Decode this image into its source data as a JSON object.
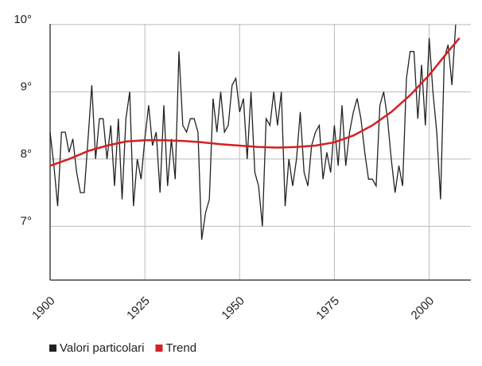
{
  "chart_data": {
    "type": "line",
    "xlim": [
      1900,
      2011
    ],
    "ylim": [
      6.2,
      10.2
    ],
    "xticks": [
      1900,
      1925,
      1950,
      1975,
      2000
    ],
    "yticks": [
      {
        "value": 7,
        "label": "7°"
      },
      {
        "value": 8,
        "label": "8°"
      },
      {
        "value": 9,
        "label": "9°"
      },
      {
        "value": 10,
        "label": "10°"
      }
    ],
    "grid": true,
    "legend": "bottom",
    "series": [
      {
        "name": "Valori particolari",
        "color": "#222222",
        "x": [
          1900,
          1901,
          1902,
          1903,
          1904,
          1905,
          1906,
          1907,
          1908,
          1909,
          1910,
          1911,
          1912,
          1913,
          1914,
          1915,
          1916,
          1917,
          1918,
          1919,
          1920,
          1921,
          1922,
          1923,
          1924,
          1925,
          1926,
          1927,
          1928,
          1929,
          1930,
          1931,
          1932,
          1933,
          1934,
          1935,
          1936,
          1937,
          1938,
          1939,
          1940,
          1941,
          1942,
          1943,
          1944,
          1945,
          1946,
          1947,
          1948,
          1949,
          1950,
          1951,
          1952,
          1953,
          1954,
          1955,
          1956,
          1957,
          1958,
          1959,
          1960,
          1961,
          1962,
          1963,
          1964,
          1965,
          1966,
          1967,
          1968,
          1969,
          1970,
          1971,
          1972,
          1973,
          1974,
          1975,
          1976,
          1977,
          1978,
          1979,
          1980,
          1981,
          1982,
          1983,
          1984,
          1985,
          1986,
          1987,
          1988,
          1989,
          1990,
          1991,
          1992,
          1993,
          1994,
          1995,
          1996,
          1997,
          1998,
          1999,
          2000,
          2001,
          2002,
          2003,
          2004,
          2005,
          2006,
          2007
        ],
        "values": [
          8.4,
          7.9,
          7.3,
          8.4,
          8.4,
          8.1,
          8.3,
          7.8,
          7.5,
          7.5,
          8.3,
          9.1,
          8.0,
          8.6,
          8.6,
          8.0,
          8.5,
          7.6,
          8.6,
          7.4,
          8.6,
          9.0,
          7.3,
          8.0,
          7.7,
          8.3,
          8.8,
          8.2,
          8.4,
          7.5,
          8.8,
          7.6,
          8.3,
          7.7,
          9.6,
          8.5,
          8.4,
          8.6,
          8.6,
          8.4,
          6.8,
          7.2,
          7.4,
          8.9,
          8.4,
          9.0,
          8.4,
          8.5,
          9.1,
          9.2,
          8.7,
          8.9,
          8.0,
          9.0,
          7.8,
          7.6,
          7.0,
          8.6,
          8.5,
          9.0,
          8.5,
          9.0,
          7.3,
          8.0,
          7.6,
          8.0,
          8.7,
          7.8,
          7.6,
          8.2,
          8.4,
          8.5,
          7.7,
          8.1,
          7.8,
          8.5,
          7.9,
          8.8,
          7.9,
          8.4,
          8.7,
          8.9,
          8.6,
          8.1,
          7.7,
          7.7,
          7.6,
          8.8,
          9.0,
          8.6,
          8.0,
          7.5,
          7.9,
          7.6,
          9.2,
          9.6,
          9.6,
          8.6,
          9.4,
          8.5,
          9.8,
          9.0,
          8.4,
          7.4,
          9.5,
          9.7,
          9.1,
          10.0
        ]
      },
      {
        "name": "Trend",
        "color": "#d42020",
        "x": [
          1900,
          1905,
          1910,
          1915,
          1920,
          1925,
          1930,
          1935,
          1940,
          1945,
          1950,
          1955,
          1960,
          1965,
          1970,
          1975,
          1980,
          1985,
          1990,
          1995,
          2000,
          2005,
          2008
        ],
        "values": [
          7.9,
          8.0,
          8.12,
          8.2,
          8.26,
          8.28,
          8.28,
          8.27,
          8.25,
          8.22,
          8.2,
          8.18,
          8.17,
          8.18,
          8.2,
          8.25,
          8.35,
          8.5,
          8.7,
          8.95,
          9.25,
          9.6,
          9.8
        ]
      }
    ]
  }
}
